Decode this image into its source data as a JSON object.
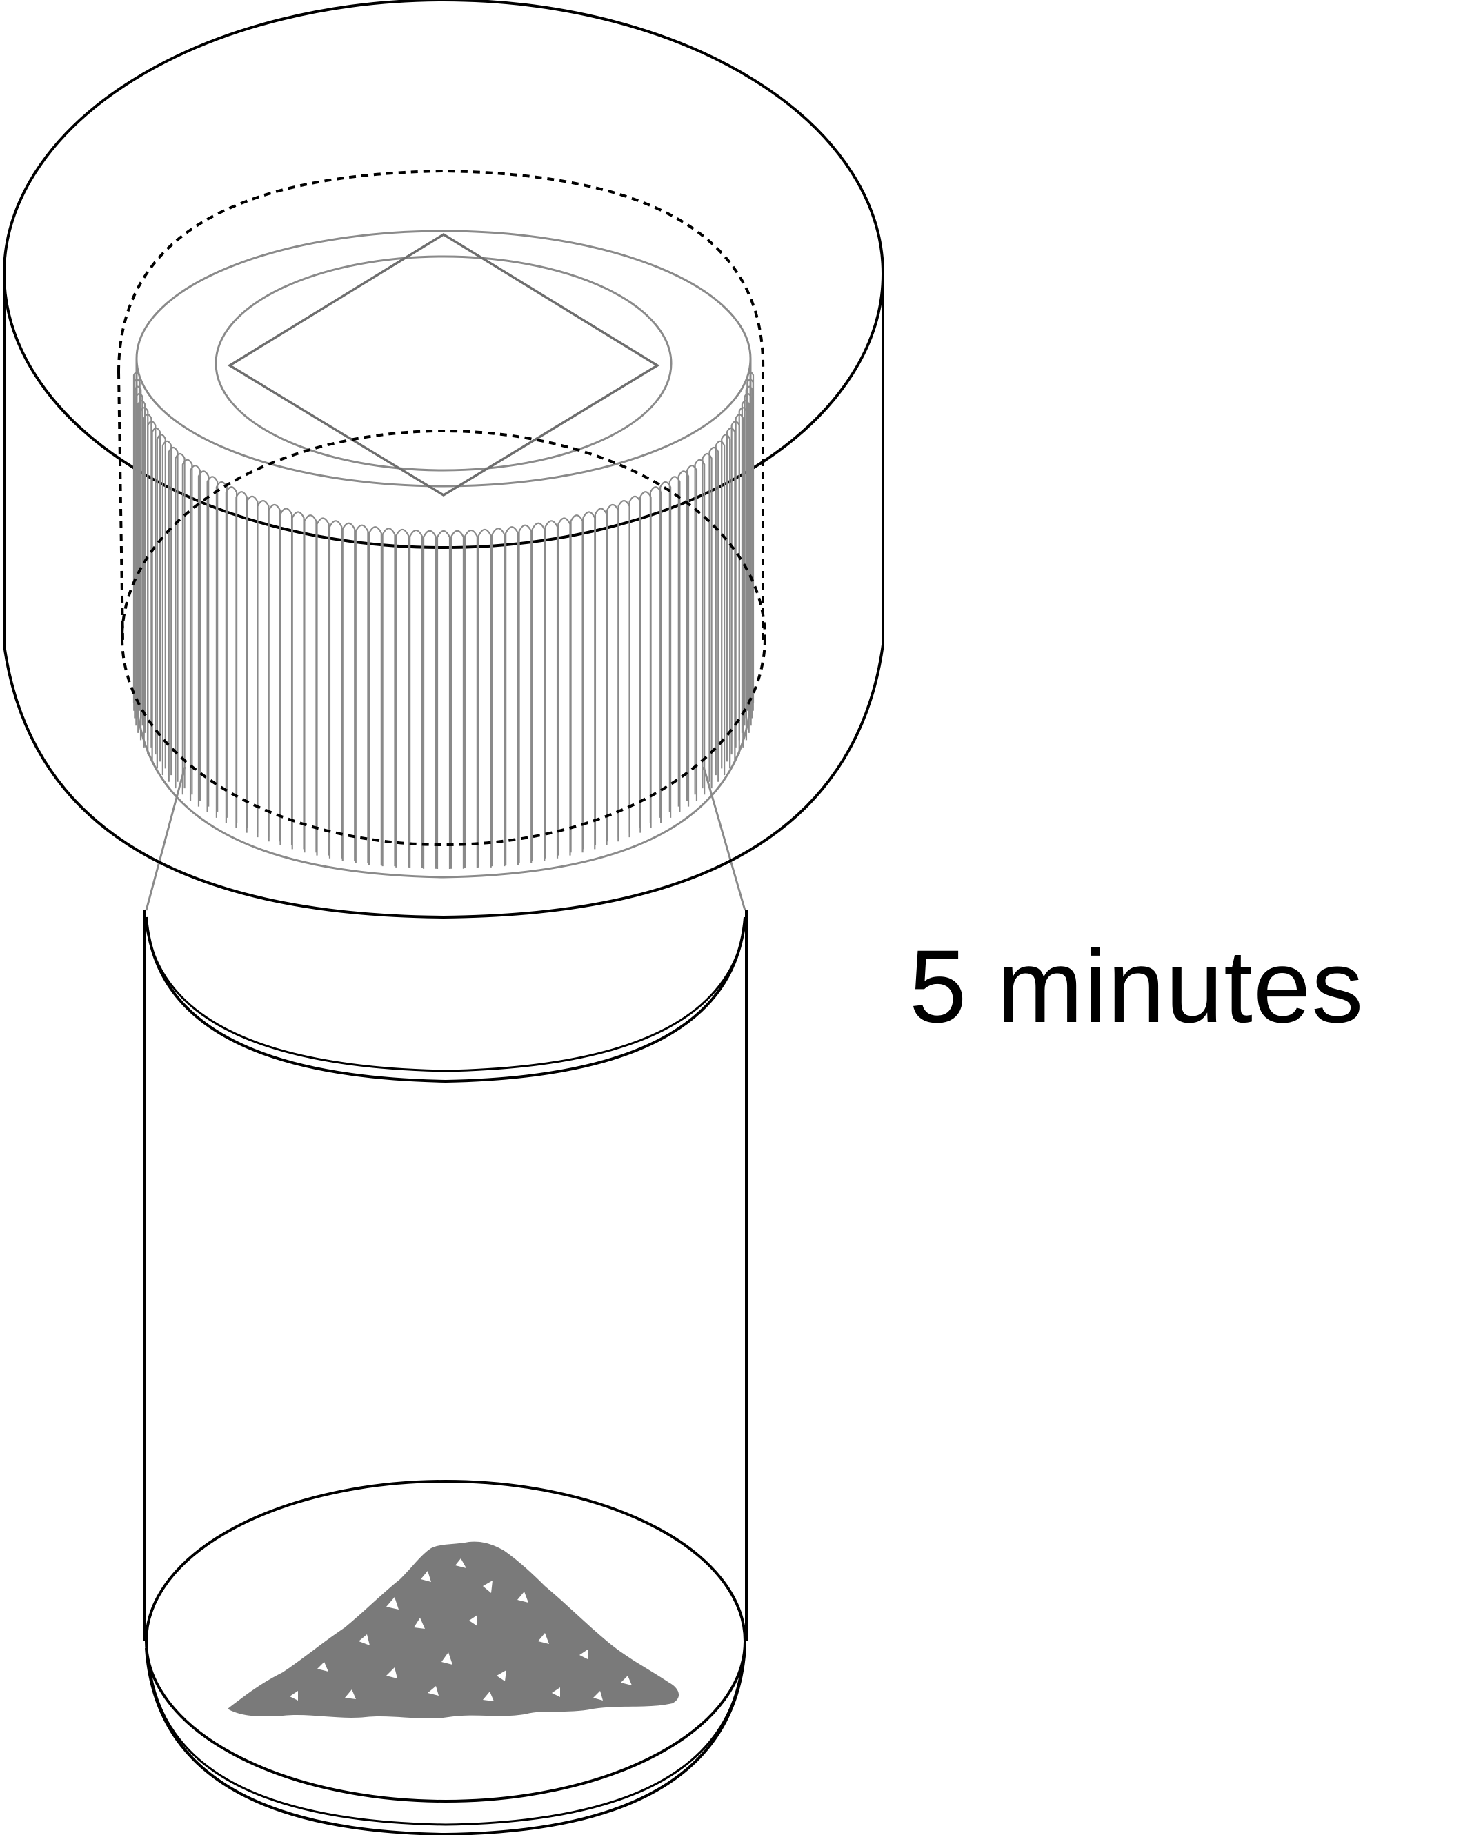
{
  "caption": {
    "text": "5 minutes"
  },
  "illustration": {
    "parts": [
      "outer-lid",
      "knurled-cap",
      "diamond-mark",
      "vial",
      "powder-pile"
    ],
    "colors": {
      "line": "#000000",
      "inner_line": "#8a8a8a",
      "powder": "#7a7a7a",
      "background": "#ffffff"
    }
  }
}
